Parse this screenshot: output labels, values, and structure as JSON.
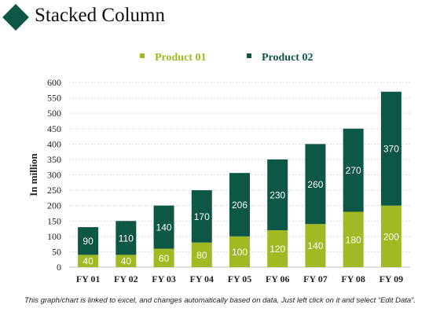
{
  "header": {
    "title": "Stacked Column"
  },
  "footnote": "This graph/chart is linked to excel, and changes automatically based on data. Just left click on it and select “Edit Data”.",
  "colors": {
    "product_01": "#9fba22",
    "product_02": "#0d5746",
    "title_icon": "#0d5746"
  },
  "chart_data": {
    "type": "bar",
    "stacked": true,
    "categories": [
      "FY 01",
      "FY 02",
      "FY 03",
      "FY 04",
      "FY 05",
      "FY 06",
      "FY 07",
      "FY 08",
      "FY 09"
    ],
    "series": [
      {
        "name": "Product 01",
        "values": [
          40,
          40,
          60,
          80,
          100,
          120,
          140,
          180,
          200
        ]
      },
      {
        "name": "Product 02",
        "values": [
          90,
          110,
          140,
          170,
          206,
          230,
          260,
          270,
          370
        ]
      }
    ],
    "ylabel": "In million",
    "xlabel": "",
    "ylim": [
      0,
      600
    ],
    "yticks": [
      0,
      50,
      100,
      150,
      200,
      250,
      300,
      350,
      400,
      450,
      500,
      550,
      600
    ],
    "grid": true,
    "legend_position": "top"
  }
}
